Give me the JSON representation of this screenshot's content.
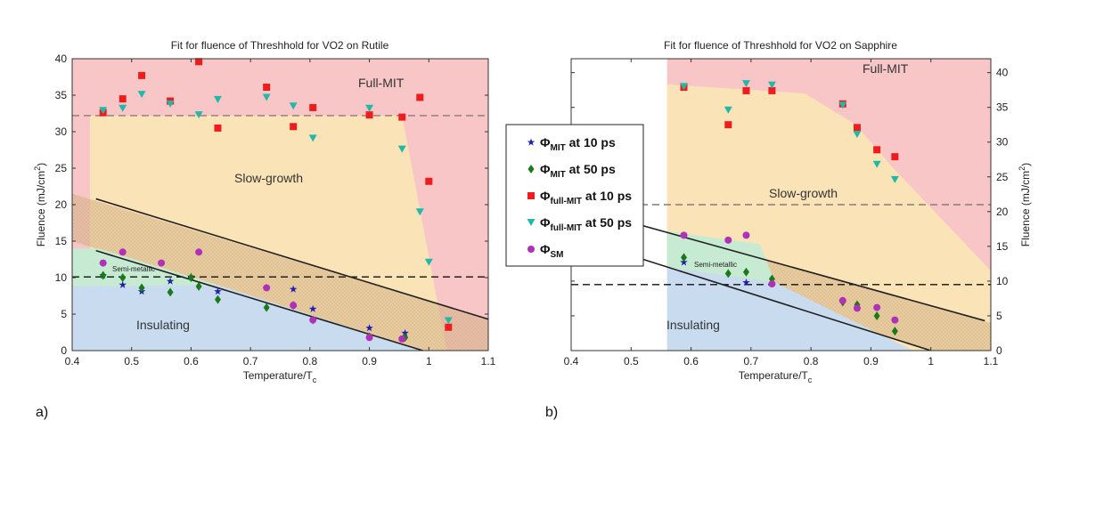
{
  "chart_data": [
    {
      "type": "scatter",
      "panel": "a)",
      "title": "Fit for fluence of Threshhold for VO2 on Rutile",
      "xlabel": "Temperature/T",
      "xlabel_sub": "c",
      "ylabel": "Fluence (mJ/cm",
      "ylabel_sup": "2",
      "ylabel_end": ")",
      "xlim": [
        0.4,
        1.1
      ],
      "ylim": [
        0,
        40
      ],
      "xticks": [
        "0.4",
        "0.5",
        "0.6",
        "0.7",
        "0.8",
        "0.9",
        "1",
        "1.1"
      ],
      "yticks": [
        "0",
        "5",
        "10",
        "15",
        "20",
        "25",
        "30",
        "35",
        "40"
      ],
      "region_labels": {
        "full_mit": "Full-MIT",
        "slow_growth": "Slow-growth",
        "semi_metallic": "Semi-metallic",
        "insulating": "Insulating"
      },
      "reference_lines": [
        {
          "name": "full-mit-threshold",
          "y": 32.2,
          "style": "dashed-gray"
        },
        {
          "name": "sm-threshold",
          "y": 10.1,
          "style": "dashed-black"
        }
      ],
      "fit_lines": [
        {
          "name": "upper-fit",
          "x": [
            0.44,
            1.1
          ],
          "y": [
            20.8,
            4.3
          ]
        },
        {
          "name": "lower-fit",
          "x": [
            0.44,
            0.99
          ],
          "y": [
            13.7,
            0.0
          ]
        }
      ],
      "series": [
        {
          "name": "mit_10ps",
          "points": [
            [
              0.452,
              10.3
            ],
            [
              0.485,
              9.0
            ],
            [
              0.517,
              8.1
            ],
            [
              0.565,
              9.5
            ],
            [
              0.6,
              10.1
            ],
            [
              0.645,
              8.1
            ],
            [
              0.772,
              8.4
            ],
            [
              0.805,
              5.7
            ],
            [
              0.9,
              3.1
            ],
            [
              0.96,
              2.4
            ]
          ]
        },
        {
          "name": "mit_50ps",
          "points": [
            [
              0.452,
              10.3
            ],
            [
              0.485,
              10.0
            ],
            [
              0.517,
              8.6
            ],
            [
              0.565,
              8.0
            ],
            [
              0.6,
              10.0
            ],
            [
              0.613,
              8.8
            ],
            [
              0.645,
              7.0
            ],
            [
              0.727,
              5.9
            ],
            [
              0.772,
              6.2
            ],
            [
              0.805,
              4.2
            ],
            [
              0.9,
              1.9
            ],
            [
              0.96,
              1.8
            ]
          ]
        },
        {
          "name": "full_mit_10ps",
          "points": [
            [
              0.452,
              32.6
            ],
            [
              0.485,
              34.5
            ],
            [
              0.517,
              37.7
            ],
            [
              0.565,
              34.2
            ],
            [
              0.613,
              39.6
            ],
            [
              0.645,
              30.5
            ],
            [
              0.727,
              36.1
            ],
            [
              0.772,
              30.7
            ],
            [
              0.805,
              33.3
            ],
            [
              0.9,
              32.3
            ],
            [
              0.955,
              32.0
            ],
            [
              0.985,
              34.7
            ],
            [
              1.0,
              23.2
            ],
            [
              1.033,
              3.2
            ]
          ]
        },
        {
          "name": "full_mit_50ps",
          "points": [
            [
              0.452,
              32.9
            ],
            [
              0.485,
              33.2
            ],
            [
              0.517,
              35.1
            ],
            [
              0.565,
              33.8
            ],
            [
              0.613,
              32.3
            ],
            [
              0.645,
              34.4
            ],
            [
              0.727,
              34.7
            ],
            [
              0.772,
              33.5
            ],
            [
              0.805,
              29.1
            ],
            [
              0.9,
              33.2
            ],
            [
              0.955,
              27.6
            ],
            [
              0.985,
              19.0
            ],
            [
              1.0,
              12.1
            ],
            [
              1.033,
              4.1
            ]
          ]
        },
        {
          "name": "sm",
          "points": [
            [
              0.452,
              12.0
            ],
            [
              0.485,
              13.5
            ],
            [
              0.55,
              12.0
            ],
            [
              0.613,
              13.5
            ],
            [
              0.727,
              8.6
            ],
            [
              0.772,
              6.2
            ],
            [
              0.805,
              4.2
            ],
            [
              0.9,
              1.8
            ],
            [
              0.955,
              1.6
            ]
          ]
        }
      ]
    },
    {
      "type": "scatter",
      "panel": "b)",
      "title": "Fit for fluence of Threshhold for VO2 on Sapphire",
      "xlabel": "Temperature/T",
      "xlabel_sub": "c",
      "ylabel": "Fluence (mJ/cm",
      "ylabel_sup": "2",
      "ylabel_end": ")",
      "xlim": [
        0.4,
        1.1
      ],
      "ylim": [
        0,
        42
      ],
      "xticks": [
        "0.4",
        "0.5",
        "0.6",
        "0.7",
        "0.8",
        "0.9",
        "1",
        "1.1"
      ],
      "yticks": [
        "0",
        "5",
        "10",
        "15",
        "20",
        "25",
        "30",
        "35",
        "40"
      ],
      "region_labels": {
        "full_mit": "Full-MIT",
        "slow_growth": "Slow-growth",
        "semi_metallic": "Semi-metallic",
        "insulating": "Insulating"
      },
      "reference_lines": [
        {
          "name": "full-mit-threshold",
          "y": 21.0,
          "style": "dashed-gray"
        },
        {
          "name": "sm-threshold",
          "y": 9.5,
          "style": "dashed-black"
        }
      ],
      "fit_lines": [
        {
          "name": "upper-fit",
          "x": [
            0.435,
            1.09
          ],
          "y": [
            20.0,
            4.3
          ]
        },
        {
          "name": "lower-fit",
          "x": [
            0.47,
            1.0
          ],
          "y": [
            14.5,
            0.0
          ]
        }
      ],
      "series": [
        {
          "name": "mit_10ps",
          "points": [
            [
              0.588,
              12.7
            ],
            [
              0.692,
              9.8
            ]
          ]
        },
        {
          "name": "mit_50ps",
          "points": [
            [
              0.588,
              13.4
            ],
            [
              0.662,
              11.1
            ],
            [
              0.692,
              11.3
            ],
            [
              0.735,
              10.3
            ],
            [
              0.853,
              7.0
            ],
            [
              0.877,
              6.6
            ],
            [
              0.91,
              5.0
            ],
            [
              0.94,
              2.8
            ]
          ]
        },
        {
          "name": "full_mit_10ps",
          "points": [
            [
              0.588,
              37.9
            ],
            [
              0.662,
              32.5
            ],
            [
              0.692,
              37.4
            ],
            [
              0.735,
              37.4
            ],
            [
              0.853,
              35.5
            ],
            [
              0.877,
              32.1
            ],
            [
              0.91,
              28.9
            ],
            [
              0.94,
              27.9
            ]
          ]
        },
        {
          "name": "full_mit_50ps",
          "points": [
            [
              0.588,
              38.0
            ],
            [
              0.662,
              34.6
            ],
            [
              0.692,
              38.4
            ],
            [
              0.735,
              38.2
            ],
            [
              0.853,
              35.3
            ],
            [
              0.877,
              31.1
            ],
            [
              0.91,
              26.8
            ],
            [
              0.94,
              24.6
            ]
          ]
        },
        {
          "name": "sm",
          "points": [
            [
              0.588,
              16.6
            ],
            [
              0.662,
              15.9
            ],
            [
              0.692,
              16.6
            ],
            [
              0.735,
              9.6
            ],
            [
              0.853,
              7.2
            ],
            [
              0.877,
              6.1
            ],
            [
              0.91,
              6.2
            ],
            [
              0.94,
              4.4
            ]
          ]
        }
      ]
    }
  ],
  "legend": {
    "entries": [
      {
        "key": "mit_10ps",
        "main": "Φ",
        "sub": "MIT",
        "suffix": " at 10 ps",
        "color": "#1f1fb0",
        "marker": "star"
      },
      {
        "key": "mit_50ps",
        "main": "Φ",
        "sub": "MIT",
        "suffix": " at 50 ps",
        "color": "#1a7a1a",
        "marker": "diamond"
      },
      {
        "key": "full_mit_10ps",
        "main": "Φ",
        "sub": "full-MIT",
        "suffix": " at 10 ps",
        "color": "#ee1c1c",
        "marker": "square"
      },
      {
        "key": "full_mit_50ps",
        "main": "Φ",
        "sub": "full-MIT",
        "suffix": " at 50 ps",
        "color": "#22b8a8",
        "marker": "triangle"
      },
      {
        "key": "sm",
        "main": "Φ",
        "sub": "SM",
        "suffix": "",
        "color": "#b030b8",
        "marker": "circle"
      }
    ]
  },
  "colors": {
    "full_mit_region": "#f8c6c6",
    "slow_growth_region": "#fbe3b8",
    "semi_metallic_region": "#c6ead2",
    "insulating_region": "#c9dcef",
    "hatch_band": "#d8b88a"
  }
}
